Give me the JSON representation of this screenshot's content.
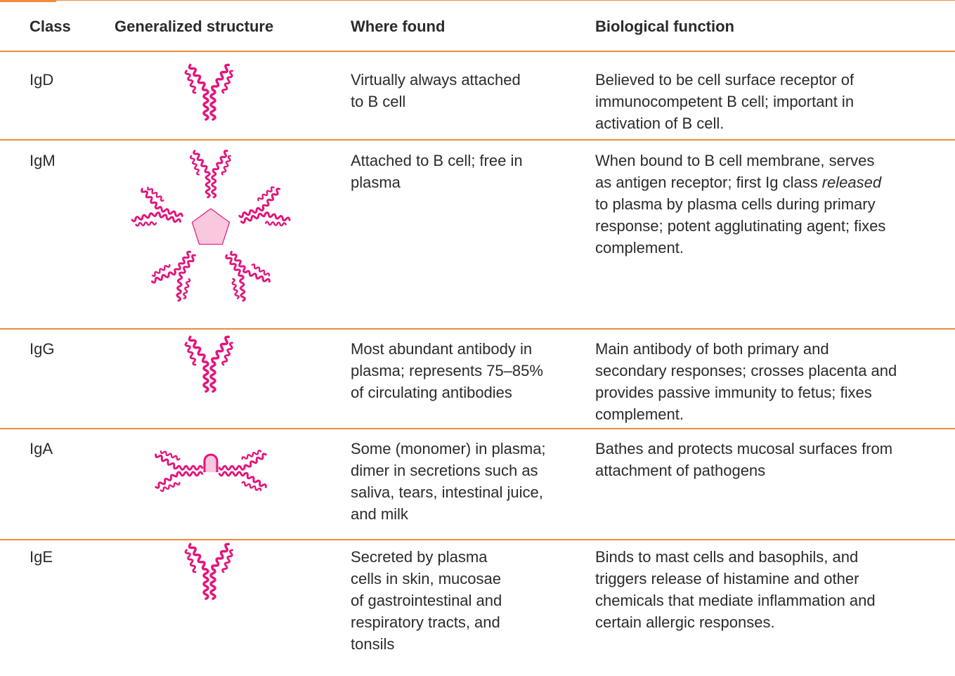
{
  "table": {
    "header": [
      "Class",
      "Generalized structure",
      "Where found",
      "Biological function"
    ],
    "rows": [
      {
        "class": "IgD",
        "where": [
          "Virtually always attached",
          "to B cell"
        ],
        "function": [
          "Believed to be cell surface receptor of",
          "immunocompetent B cell; important in",
          "activation of B cell."
        ]
      },
      {
        "class": "IgM",
        "where": [
          "Attached to B cell; free in",
          "plasma"
        ],
        "function": [
          "When bound to B cell membrane, serves",
          [
            "as antigen receptor; first Ig class",
            "released"
          ],
          "to plasma by plasma cells during primary",
          "response; potent agglutinating agent; fixes",
          "complement."
        ]
      },
      {
        "class": "IgG",
        "where": [
          "Most abundant antibody in",
          "plasma; represents 75–85%",
          "of circulating antibodies"
        ],
        "function": [
          "Main antibody of both primary and",
          "secondary responses; crosses placenta and",
          "provides passive immunity to fetus; fixes",
          "complement."
        ]
      },
      {
        "class": "IgA",
        "where": [
          "Some (monomer) in plasma;",
          "dimer in secretions such as",
          "saliva, tears, intestinal juice,",
          "and milk"
        ],
        "function": [
          "Bathes and protects mucosal surfaces from",
          "attachment of pathogens"
        ]
      },
      {
        "class": "IgE",
        "where": [
          "Secreted by plasma",
          "cells in skin, mucosae",
          "of gastrointestinal and",
          "respiratory tracts, and",
          "tonsils"
        ],
        "function": [
          "Binds to mast cells and basophils, and",
          "triggers release of histamine and other",
          "chemicals that mediate inflammation and",
          "certain allergic responses."
        ]
      }
    ]
  }
}
